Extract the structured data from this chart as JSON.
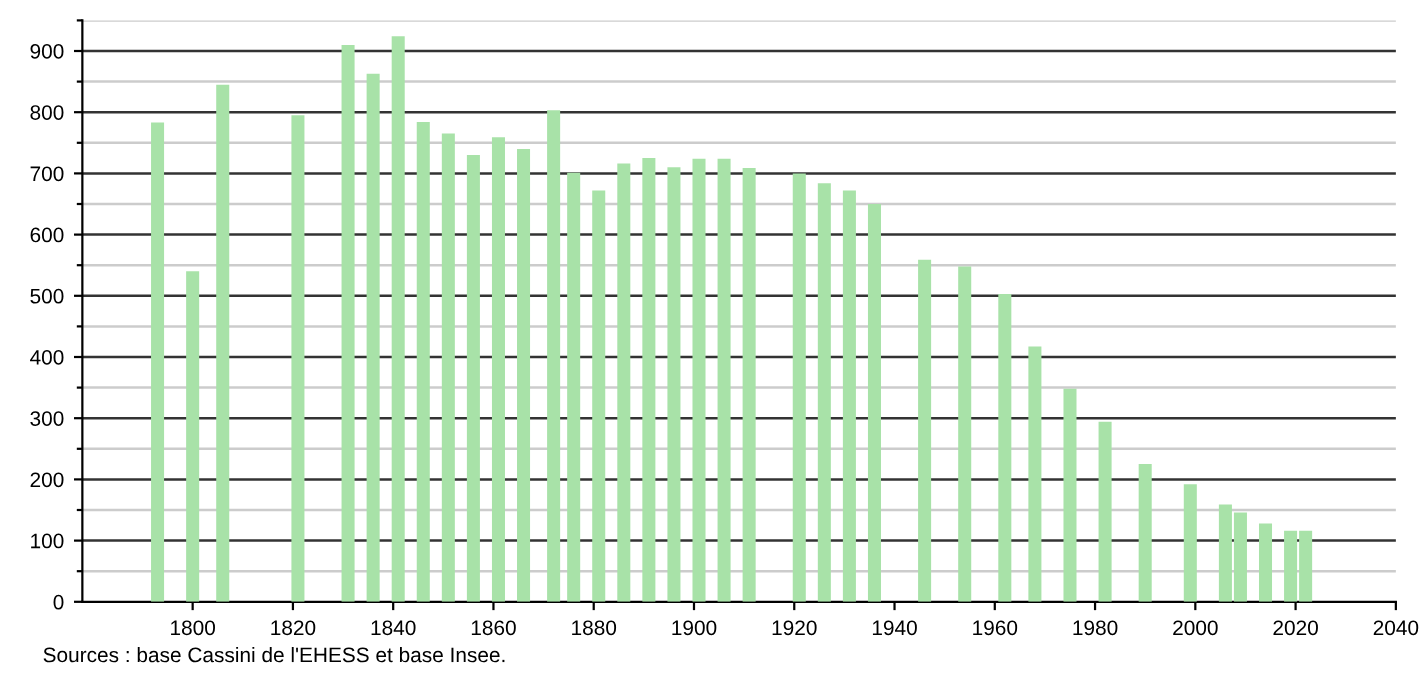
{
  "chart_data": {
    "type": "bar",
    "x": [
      1793,
      1800,
      1806,
      1821,
      1831,
      1836,
      1841,
      1846,
      1851,
      1856,
      1861,
      1866,
      1872,
      1876,
      1881,
      1886,
      1891,
      1896,
      1901,
      1906,
      1911,
      1921,
      1926,
      1931,
      1936,
      1946,
      1954,
      1962,
      1968,
      1975,
      1982,
      1990,
      1999,
      2006,
      2009,
      2014,
      2019,
      2022
    ],
    "values": [
      783,
      540,
      845,
      795,
      910,
      863,
      924,
      784,
      765,
      730,
      759,
      740,
      803,
      701,
      672,
      716,
      725,
      710,
      724,
      724,
      709,
      700,
      684,
      672,
      650,
      559,
      548,
      503,
      417,
      348,
      294,
      225,
      192,
      159,
      146,
      128,
      116,
      116
    ],
    "color": "#a8e2a8",
    "xlim": [
      1778,
      2040
    ],
    "xticks": [
      1800,
      1820,
      1840,
      1860,
      1880,
      1900,
      1920,
      1940,
      1960,
      1980,
      2000,
      2020,
      2040
    ],
    "ylim": [
      0,
      950
    ],
    "yticks": [
      0,
      {
        "value": 50,
        "label": null
      },
      100,
      {
        "value": 150,
        "label": null
      },
      200,
      {
        "value": 250,
        "label": null
      },
      300,
      {
        "value": 350,
        "label": null
      },
      400,
      {
        "value": 450,
        "label": null
      },
      500,
      {
        "value": 550,
        "label": null
      },
      600,
      {
        "value": 650,
        "label": null
      },
      700,
      {
        "value": 750,
        "label": null
      },
      800,
      {
        "value": 850,
        "label": null
      },
      900,
      {
        "value": 950,
        "label": null
      }
    ],
    "grid": "y",
    "annotations": [
      "Sources : base Cassini de l'EHESS et base Insee."
    ]
  }
}
